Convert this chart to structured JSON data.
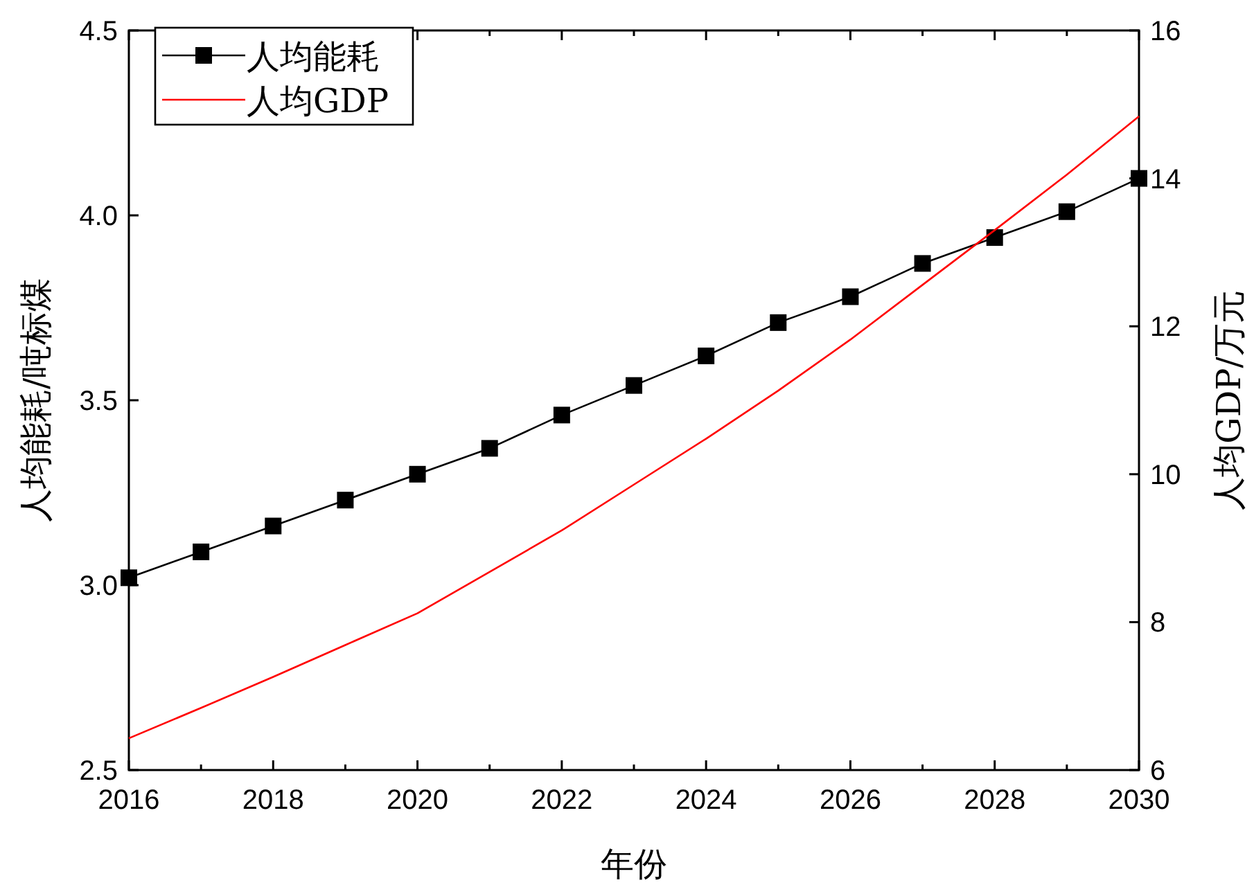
{
  "chart_data": {
    "type": "line",
    "xlabel": "年份",
    "ylabel": "人均能耗/吨标煤",
    "y2label": "人均GDP/万元",
    "x": [
      2016,
      2017,
      2018,
      2019,
      2020,
      2021,
      2022,
      2023,
      2024,
      2025,
      2026,
      2027,
      2028,
      2029,
      2030
    ],
    "series": [
      {
        "name": "人均能耗",
        "color": "#000000",
        "marker": "square",
        "values": [
          3.02,
          3.09,
          3.16,
          3.23,
          3.3,
          3.37,
          3.46,
          3.54,
          3.62,
          3.71,
          3.78,
          3.87,
          3.94,
          4.01,
          4.1
        ]
      },
      {
        "name": "人均GDP",
        "color": "#ff0000",
        "marker": "none",
        "axis": "y2",
        "values": [
          6.43,
          6.84,
          7.26,
          7.69,
          8.12,
          8.68,
          9.24,
          9.86,
          10.48,
          11.13,
          11.82,
          12.56,
          13.3,
          14.05,
          14.84
        ]
      }
    ],
    "xlim": [
      2016,
      2030
    ],
    "xticks": [
      2016,
      {
        "value": 2017,
        "label": null
      },
      2018,
      {
        "value": 2019,
        "label": null
      },
      2020,
      {
        "value": 2021,
        "label": null
      },
      2022,
      {
        "value": 2023,
        "label": null
      },
      2024,
      {
        "value": 2025,
        "label": null
      },
      2026,
      {
        "value": 2027,
        "label": null
      },
      2028,
      {
        "value": 2029,
        "label": null
      },
      2030
    ],
    "ylim": [
      2.5,
      4.5
    ],
    "yticks": [
      2.5,
      {
        "value": 3,
        "label": "3.0"
      },
      3.5,
      {
        "value": 4,
        "label": "4.0"
      },
      4.5
    ],
    "y2lim": [
      6,
      16
    ],
    "y2ticks": [
      6,
      8,
      10,
      12,
      14,
      16
    ],
    "grid": false,
    "legend": "top left",
    "line_style": "solid"
  }
}
